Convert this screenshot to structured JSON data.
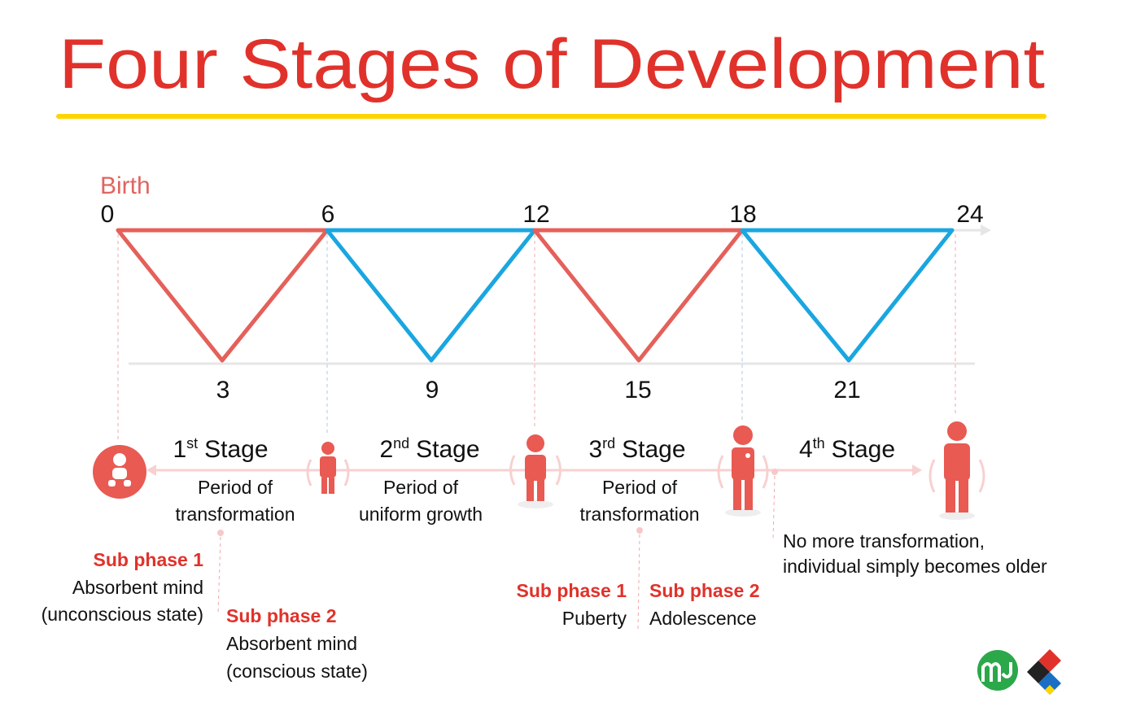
{
  "title": "Four Stages of Development",
  "timeline": {
    "start_label": "Birth",
    "top_ages": [
      0,
      6,
      12,
      18,
      24
    ],
    "bottom_ages": [
      3,
      9,
      15,
      21
    ]
  },
  "stages": [
    {
      "ordinal": "1",
      "suffix": "st",
      "word": "Stage",
      "description": [
        "Period of",
        "transformation"
      ],
      "sub_phases": [
        {
          "title": "Sub phase 1",
          "lines": [
            "Absorbent mind",
            "(unconscious state)"
          ]
        },
        {
          "title": "Sub phase 2",
          "lines": [
            "Absorbent mind",
            "(conscious state)"
          ]
        }
      ]
    },
    {
      "ordinal": "2",
      "suffix": "nd",
      "word": "Stage",
      "description": [
        "Period of",
        "uniform growth"
      ]
    },
    {
      "ordinal": "3",
      "suffix": "rd",
      "word": "Stage",
      "description": [
        "Period of",
        "transformation"
      ],
      "sub_phases": [
        {
          "title": "Sub phase 1",
          "lines": [
            "Puberty"
          ]
        },
        {
          "title": "Sub phase 2",
          "lines": [
            "Adolescence"
          ]
        }
      ]
    },
    {
      "ordinal": "4",
      "suffix": "th",
      "word": "Stage",
      "note": [
        "No more transformation,",
        "individual simply becomes older"
      ]
    }
  ]
}
